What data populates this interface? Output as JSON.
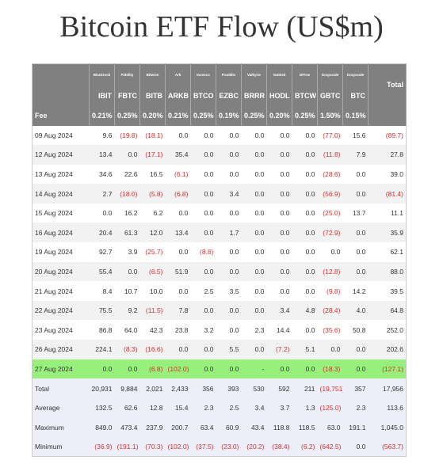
{
  "title": "Bitcoin ETF Flow (US$m)",
  "table": {
    "issuers": [
      "Blackrock",
      "Fidelity",
      "Bitwise",
      "Ark",
      "Invesco",
      "Franklin",
      "Valkyrie",
      "VanEck",
      "WTree",
      "Grayscale",
      "Grayscale"
    ],
    "total_header": "Total",
    "tickers": [
      "IBIT",
      "FBTC",
      "BITB",
      "ARKB",
      "BTCO",
      "EZBC",
      "BRRR",
      "HODL",
      "BTCW",
      "GBTC",
      "BTC"
    ],
    "fee_label": "Fee",
    "fees": [
      "0.21%",
      "0.25%",
      "0.20%",
      "0.21%",
      "0.25%",
      "0.19%",
      "0.25%",
      "0.20%",
      "0.25%",
      "1.50%",
      "0.15%"
    ],
    "rows": [
      [
        "09 Aug 2024",
        "9.6",
        "(19.8)",
        "(18.1)",
        "0.0",
        "0.0",
        "0.0",
        "0.0",
        "0.0",
        "0.0",
        "(77.0)",
        "15.6",
        "(89.7)"
      ],
      [
        "12 Aug 2024",
        "13.4",
        "0.0",
        "(17.1)",
        "35.4",
        "0.0",
        "0.0",
        "0.0",
        "0.0",
        "0.0",
        "(11.8)",
        "7.9",
        "27.8"
      ],
      [
        "13 Aug 2024",
        "34.6",
        "22.6",
        "16.5",
        "(6.1)",
        "0.0",
        "0.0",
        "0.0",
        "0.0",
        "0.0",
        "(28.6)",
        "0.0",
        "39.0"
      ],
      [
        "14 Aug 2024",
        "2.7",
        "(18.0)",
        "(5.8)",
        "(6.8)",
        "0.0",
        "3.4",
        "0.0",
        "0.0",
        "0.0",
        "(56.9)",
        "0.0",
        "(81.4)"
      ],
      [
        "15 Aug 2024",
        "0.0",
        "16.2",
        "6.2",
        "0.0",
        "0.0",
        "0.0",
        "0.0",
        "0.0",
        "0.0",
        "(25.0)",
        "13.7",
        "11.1"
      ],
      [
        "16 Aug 2024",
        "20.4",
        "61.3",
        "12.0",
        "13.4",
        "0.0",
        "1.7",
        "0.0",
        "0.0",
        "0.0",
        "(72.9)",
        "0.0",
        "35.9"
      ],
      [
        "19 Aug 2024",
        "92.7",
        "3.9",
        "(25.7)",
        "0.0",
        "(8.8)",
        "0.0",
        "0.0",
        "0.0",
        "0.0",
        "0.0",
        "0.0",
        "62.1"
      ],
      [
        "20 Aug 2024",
        "55.4",
        "0.0",
        "(6.5)",
        "51.9",
        "0.0",
        "0.0",
        "0.0",
        "0.0",
        "0.0",
        "(12.8)",
        "0.0",
        "88.0"
      ],
      [
        "21 Aug 2024",
        "8.4",
        "10.7",
        "10.0",
        "0.0",
        "2.5",
        "3.5",
        "0.0",
        "0.0",
        "0.0",
        "(9.8)",
        "14.2",
        "39.5"
      ],
      [
        "22 Aug 2024",
        "75.5",
        "9.2",
        "(11.5)",
        "7.8",
        "0.0",
        "0.0",
        "0.0",
        "3.4",
        "4.8",
        "(28.4)",
        "4.0",
        "64.8"
      ],
      [
        "23 Aug 2024",
        "86.8",
        "64.0",
        "42.3",
        "23.8",
        "3.2",
        "0.0",
        "2.3",
        "14.4",
        "0.0",
        "(35.6)",
        "50.8",
        "252.0"
      ],
      [
        "26 Aug 2024",
        "224.1",
        "(8.3)",
        "(16.6)",
        "0.0",
        "0.0",
        "5.5",
        "0.0",
        "(7.2)",
        "5.1",
        "0.0",
        "0.0",
        "202.6"
      ],
      [
        "27 Aug 2024",
        "0.0",
        "0.0",
        "(6.8)",
        "(102.0)",
        "0.0",
        "0.0",
        "-",
        "0.0",
        "0.0",
        "(18.3)",
        "0.0",
        "(127.1)"
      ]
    ],
    "summary_rows": [
      [
        "Total",
        "20,931",
        "9,884",
        "2,021",
        "2,433",
        "356",
        "393",
        "530",
        "592",
        "211",
        "(19,751)",
        "357",
        "17,956"
      ],
      [
        "Average",
        "132.5",
        "62.6",
        "12.8",
        "15.4",
        "2.3",
        "2.5",
        "3.4",
        "3.7",
        "1.3",
        "(125.0)",
        "2.3",
        "113.6"
      ],
      [
        "Maximum",
        "849.0",
        "473.4",
        "237.9",
        "200.7",
        "63.4",
        "60.9",
        "43.4",
        "118.8",
        "118.5",
        "63.0",
        "191.1",
        "1,045.0"
      ],
      [
        "Minimum",
        "(36.9)",
        "(191.1)",
        "(70.3)",
        "(102.0)",
        "(37.5)",
        "(23.0)",
        "(20.2)",
        "(38.4)",
        "(6.2)",
        "(642.5)",
        "0.0",
        "(563.7)"
      ]
    ]
  }
}
